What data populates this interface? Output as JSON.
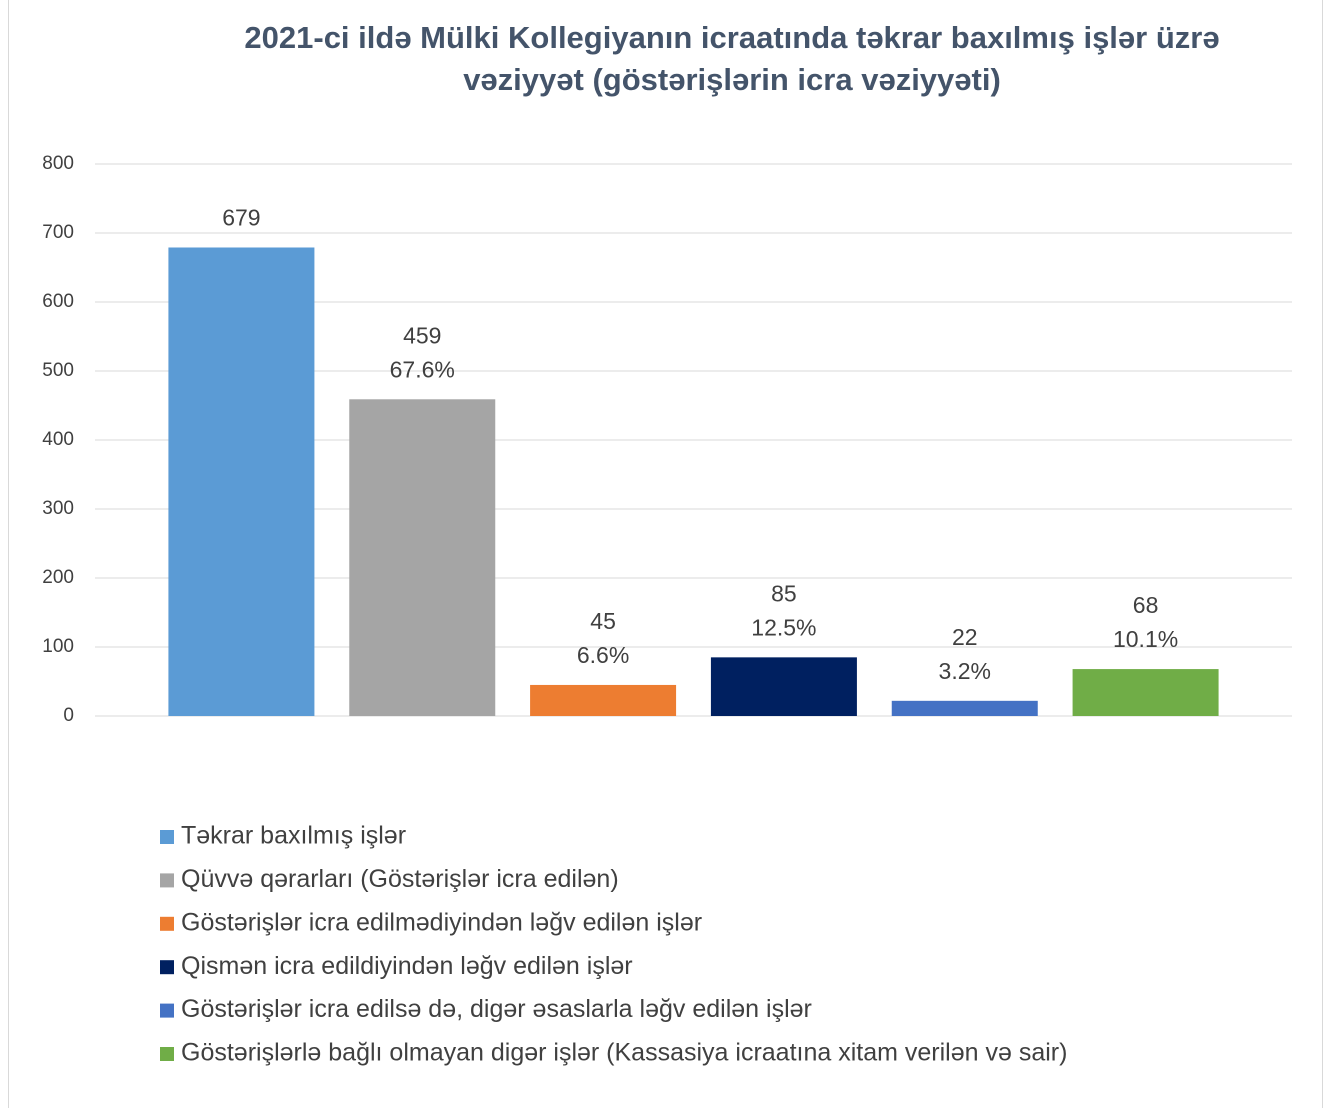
{
  "chart_data": {
    "type": "bar",
    "title": "2021-ci ildə Mülki Kollegiyanın icraatında təkrar baxılmış işlər üzrə",
    "subtitle": "vəziyyət (göstərişlərin icra vəziyyəti)",
    "categories": [
      null
    ],
    "ylim": [
      0,
      800
    ],
    "yticks": [
      0,
      100,
      200,
      300,
      400,
      500,
      600,
      700,
      800
    ],
    "grid": true,
    "legend": "bottom",
    "series": [
      {
        "name": "Təkrar baxılmış işlər",
        "color": "#5b9bd5",
        "values": [
          679
        ]
      },
      {
        "name": "Qüvvə qərarları (Göstərişlər icra edilən)",
        "color": "#a5a5a5",
        "values": [
          459
        ],
        "share_labels": [
          "67.6%"
        ]
      },
      {
        "name": "Göstərişlər icra edilmədiyindən ləğv edilən işlər",
        "color": "#ed7d31",
        "values": [
          45
        ],
        "share_labels": [
          "6.6%"
        ]
      },
      {
        "name": "Qismən icra edildiyindən ləğv edilən işlər",
        "color": "#002060",
        "values": [
          85
        ],
        "share_labels": [
          "12.5%"
        ]
      },
      {
        "name": "Göstərişlər icra edilsə də, digər əsaslarla ləğv edilən işlər",
        "color": "#4472c4",
        "values": [
          22
        ],
        "share_labels": [
          "3.2%"
        ]
      },
      {
        "name": "Göstərişlərlə bağlı olmayan digər işlər (Kassasiya icraatına xitam verilən və sair)",
        "color": "#70ad47",
        "values": [
          68
        ],
        "share_labels": [
          "10.1%"
        ]
      }
    ]
  }
}
